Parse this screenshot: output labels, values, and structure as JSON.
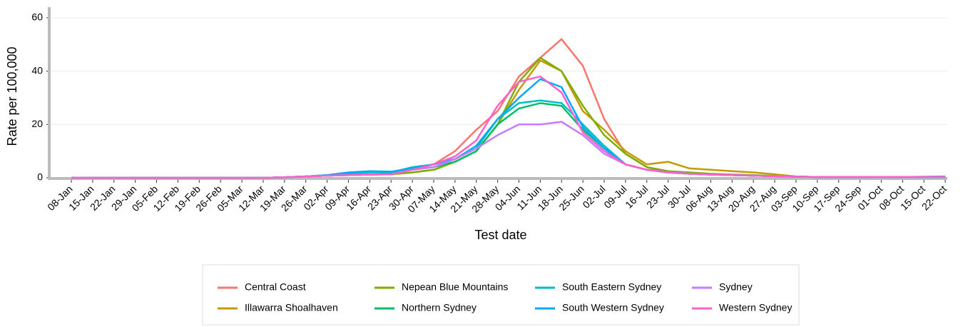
{
  "chart_data": {
    "type": "line",
    "x_label": "Test date",
    "y_label": "Rate per 100,000",
    "categories": [
      "08-Jan",
      "15-Jan",
      "22-Jan",
      "29-Jan",
      "05-Feb",
      "12-Feb",
      "19-Feb",
      "26-Feb",
      "05-Mar",
      "12-Mar",
      "19-Mar",
      "26-Mar",
      "02-Apr",
      "09-Apr",
      "16-Apr",
      "23-Apr",
      "30-Apr",
      "07-May",
      "14-May",
      "21-May",
      "28-May",
      "04-Jun",
      "11-Jun",
      "18-Jun",
      "25-Jun",
      "02-Jul",
      "09-Jul",
      "16-Jul",
      "23-Jul",
      "30-Jul",
      "06-Aug",
      "13-Aug",
      "20-Aug",
      "27-Aug",
      "03-Sep",
      "10-Sep",
      "17-Sep",
      "24-Sep",
      "01-Oct",
      "08-Oct",
      "15-Oct",
      "22-Oct"
    ],
    "ylim": [
      0,
      64
    ],
    "yticks": [
      0,
      20,
      40,
      60
    ],
    "grid": true,
    "series": [
      {
        "name": "Central Coast",
        "color": "#f8766d",
        "values": [
          0,
          0,
          0,
          0,
          0,
          0,
          0,
          0,
          0,
          0,
          0.2,
          0.5,
          0.8,
          1,
          1.2,
          1.5,
          3,
          5,
          10,
          18,
          25,
          38,
          45,
          52,
          42,
          22,
          9,
          4,
          2,
          1.5,
          1.2,
          1,
          0.8,
          0.6,
          0.4,
          0.3,
          0.3,
          0.3,
          0.3,
          0.3,
          0.3,
          0.3
        ]
      },
      {
        "name": "Illawarra Shoalhaven",
        "color": "#c49a00",
        "values": [
          0,
          0,
          0,
          0,
          0,
          0,
          0,
          0,
          0,
          0,
          0.2,
          0.5,
          0.8,
          1,
          1.2,
          1.3,
          2,
          3,
          6,
          10,
          20,
          33,
          44,
          40,
          25,
          18,
          10,
          5,
          6,
          3.5,
          3,
          2.5,
          2,
          1.3,
          0.5,
          0.3,
          0.3,
          0.3,
          0.3,
          0.3,
          0.3,
          0.3
        ]
      },
      {
        "name": "Nepean Blue Mountains",
        "color": "#7cae00",
        "values": [
          0,
          0,
          0,
          0,
          0,
          0,
          0,
          0,
          0,
          0,
          0.2,
          0.5,
          0.8,
          1,
          1.2,
          1.3,
          2,
          3,
          6,
          10,
          20,
          36,
          45,
          40,
          27,
          16,
          9,
          4,
          2.5,
          2,
          1.5,
          1.2,
          1,
          0.7,
          0.4,
          0.3,
          0.3,
          0.3,
          0.3,
          0.3,
          0.3,
          0.3
        ]
      },
      {
        "name": "Northern Sydney",
        "color": "#00be67",
        "values": [
          0,
          0,
          0,
          0,
          0,
          0,
          0,
          0,
          0,
          0,
          0.2,
          0.5,
          0.8,
          1,
          1.2,
          1.5,
          3,
          4,
          6,
          10,
          20,
          26,
          28,
          27,
          18,
          11,
          5,
          3,
          2,
          1.5,
          1.2,
          1,
          0.8,
          0.6,
          0.4,
          0.3,
          0.3,
          0.3,
          0.3,
          0.3,
          0.3,
          0.3
        ]
      },
      {
        "name": "South Eastern Sydney",
        "color": "#00bfc4",
        "values": [
          0,
          0,
          0,
          0,
          0,
          0,
          0,
          0,
          0,
          0,
          0.2,
          0.5,
          1,
          1.5,
          2,
          2,
          4,
          5,
          7,
          11,
          22,
          28,
          29,
          28,
          20,
          12,
          5,
          3,
          2,
          1.5,
          1.2,
          1,
          0.8,
          0.6,
          0.4,
          0.3,
          0.3,
          0.3,
          0.3,
          0.3,
          0.4,
          0.5
        ]
      },
      {
        "name": "South Western Sydney",
        "color": "#00a9ff",
        "values": [
          0,
          0,
          0,
          0,
          0,
          0,
          0,
          0,
          0,
          0,
          0.2,
          0.5,
          1,
          2,
          2.5,
          2.3,
          3.5,
          5,
          7,
          12,
          22,
          30,
          37,
          34,
          19,
          11,
          5,
          3,
          2,
          1.5,
          1.2,
          1,
          0.8,
          0.6,
          0.4,
          0.3,
          0.3,
          0.3,
          0.3,
          0.3,
          0.3,
          0.3
        ]
      },
      {
        "name": "Sydney",
        "color": "#c77cff",
        "values": [
          0,
          0,
          0,
          0,
          0,
          0,
          0,
          0,
          0,
          0,
          0.2,
          0.5,
          0.8,
          1,
          1.2,
          1.3,
          3,
          4,
          7,
          11,
          16,
          20,
          20,
          21,
          16,
          9,
          5,
          3,
          2,
          1.5,
          1.2,
          1,
          0.8,
          0.6,
          0.4,
          0.3,
          0.3,
          0.3,
          0.3,
          0.3,
          0.3,
          0.3
        ]
      },
      {
        "name": "Western Sydney",
        "color": "#ff61cc",
        "values": [
          0,
          0,
          0,
          0,
          0,
          0,
          0,
          0,
          0,
          0,
          0.2,
          0.5,
          0.8,
          1,
          1.2,
          1.3,
          3,
          5,
          8,
          14,
          27,
          36,
          38,
          32,
          17,
          10,
          5,
          3,
          2,
          1.5,
          1.2,
          1,
          0.8,
          0.6,
          0.4,
          0.3,
          0.3,
          0.3,
          0.3,
          0.3,
          0.3,
          0.3
        ]
      }
    ]
  }
}
